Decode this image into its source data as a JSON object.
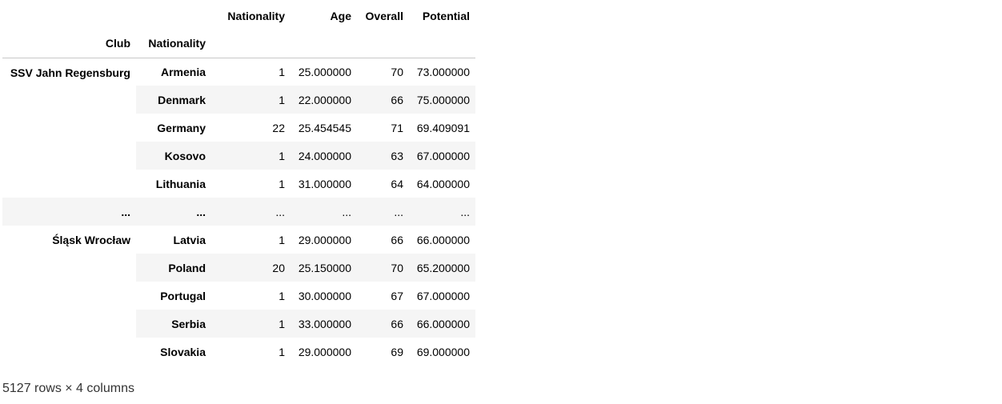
{
  "table": {
    "header_row_1": {
      "blank_1": "",
      "blank_2": "",
      "columns": [
        "Nationality",
        "Age",
        "Overall",
        "Potential"
      ]
    },
    "header_row_2": {
      "index_names": [
        "Club",
        "Nationality"
      ]
    },
    "groups": [
      {
        "club": "SSV Jahn Regensburg",
        "rows": [
          {
            "nationality": "Armenia",
            "count": "1",
            "age": "25.000000",
            "overall": "70",
            "potential": "73.000000"
          },
          {
            "nationality": "Denmark",
            "count": "1",
            "age": "22.000000",
            "overall": "66",
            "potential": "75.000000"
          },
          {
            "nationality": "Germany",
            "count": "22",
            "age": "25.454545",
            "overall": "71",
            "potential": "69.409091"
          },
          {
            "nationality": "Kosovo",
            "count": "1",
            "age": "24.000000",
            "overall": "63",
            "potential": "67.000000"
          },
          {
            "nationality": "Lithuania",
            "count": "1",
            "age": "31.000000",
            "overall": "64",
            "potential": "64.000000"
          }
        ]
      },
      {
        "ellipsis": {
          "club": "...",
          "nationality": "...",
          "count": "...",
          "age": "...",
          "overall": "...",
          "potential": "..."
        }
      },
      {
        "club": "Śląsk Wrocław",
        "rows": [
          {
            "nationality": "Latvia",
            "count": "1",
            "age": "29.000000",
            "overall": "66",
            "potential": "66.000000"
          },
          {
            "nationality": "Poland",
            "count": "20",
            "age": "25.150000",
            "overall": "70",
            "potential": "65.200000"
          },
          {
            "nationality": "Portugal",
            "count": "1",
            "age": "30.000000",
            "overall": "67",
            "potential": "67.000000"
          },
          {
            "nationality": "Serbia",
            "count": "1",
            "age": "33.000000",
            "overall": "66",
            "potential": "66.000000"
          },
          {
            "nationality": "Slovakia",
            "count": "1",
            "age": "29.000000",
            "overall": "69",
            "potential": "69.000000"
          }
        ]
      }
    ]
  },
  "footer": {
    "shape_text": "5127 rows × 4 columns"
  }
}
